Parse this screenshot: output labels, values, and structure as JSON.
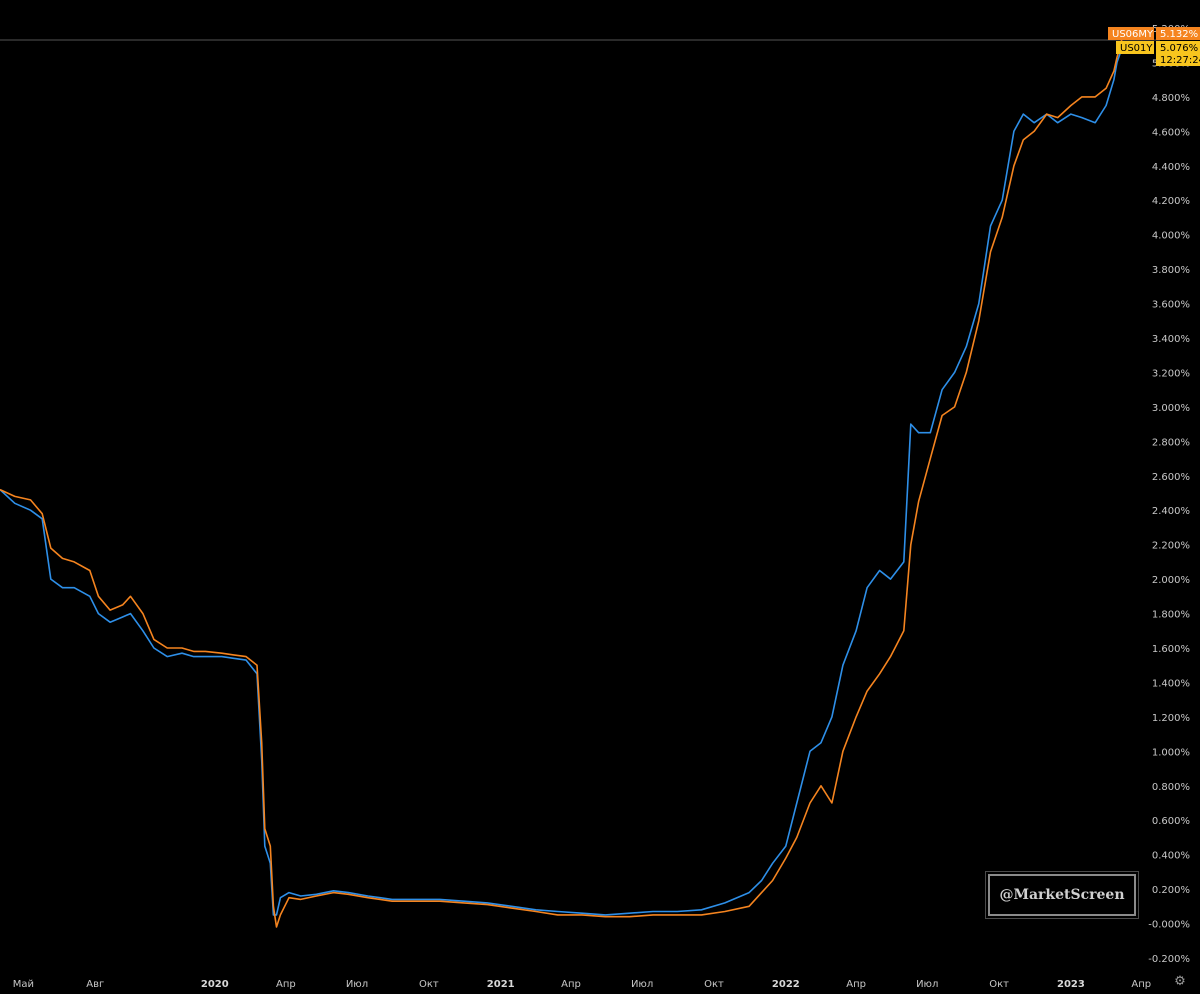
{
  "chart_data": {
    "type": "line",
    "title": "",
    "xlabel": "",
    "ylabel": "",
    "ylim": [
      -0.2,
      5.2
    ],
    "y_ticks": [
      "5.200%",
      "5.000%",
      "4.800%",
      "4.600%",
      "4.400%",
      "4.200%",
      "4.000%",
      "3.800%",
      "3.600%",
      "3.400%",
      "3.200%",
      "3.000%",
      "2.800%",
      "2.600%",
      "2.400%",
      "2.200%",
      "2.000%",
      "1.800%",
      "1.600%",
      "1.400%",
      "1.200%",
      "1.000%",
      "0.800%",
      "0.600%",
      "0.400%",
      "0.200%",
      "-0.000%",
      "-0.200%"
    ],
    "y_tick_values": [
      5.2,
      5.0,
      4.8,
      4.6,
      4.4,
      4.2,
      4.0,
      3.8,
      3.6,
      3.4,
      3.2,
      3.0,
      2.8,
      2.6,
      2.4,
      2.2,
      2.0,
      1.8,
      1.6,
      1.4,
      1.2,
      1.0,
      0.8,
      0.6,
      0.4,
      0.2,
      0.0,
      -0.2
    ],
    "x_range": [
      "2019-04-01",
      "2023-04-25"
    ],
    "x_ticks": [
      {
        "label": "Май",
        "date": "2019-05-01",
        "year": false
      },
      {
        "label": "Авг",
        "date": "2019-08-01",
        "year": false
      },
      {
        "label": "2020",
        "date": "2020-01-01",
        "year": true
      },
      {
        "label": "Апр",
        "date": "2020-04-01",
        "year": false
      },
      {
        "label": "Июл",
        "date": "2020-07-01",
        "year": false
      },
      {
        "label": "Окт",
        "date": "2020-10-01",
        "year": false
      },
      {
        "label": "2021",
        "date": "2021-01-01",
        "year": true
      },
      {
        "label": "Апр",
        "date": "2021-04-01",
        "year": false
      },
      {
        "label": "Июл",
        "date": "2021-07-01",
        "year": false
      },
      {
        "label": "Окт",
        "date": "2021-10-01",
        "year": false
      },
      {
        "label": "2022",
        "date": "2022-01-01",
        "year": true
      },
      {
        "label": "Апр",
        "date": "2022-04-01",
        "year": false
      },
      {
        "label": "Июл",
        "date": "2022-07-01",
        "year": false
      },
      {
        "label": "Окт",
        "date": "2022-10-01",
        "year": false
      },
      {
        "label": "2023",
        "date": "2023-01-01",
        "year": true
      },
      {
        "label": "Апр",
        "date": "2023-04-01",
        "year": false
      }
    ],
    "series": [
      {
        "name": "US06MY",
        "color": "#f5841f",
        "last_value": "5.132%",
        "points": [
          [
            "2019-04-01",
            2.52
          ],
          [
            "2019-04-20",
            2.48
          ],
          [
            "2019-05-10",
            2.46
          ],
          [
            "2019-05-25",
            2.38
          ],
          [
            "2019-06-05",
            2.18
          ],
          [
            "2019-06-20",
            2.12
          ],
          [
            "2019-07-05",
            2.1
          ],
          [
            "2019-07-25",
            2.05
          ],
          [
            "2019-08-05",
            1.9
          ],
          [
            "2019-08-20",
            1.82
          ],
          [
            "2019-09-05",
            1.85
          ],
          [
            "2019-09-15",
            1.9
          ],
          [
            "2019-10-01",
            1.8
          ],
          [
            "2019-10-15",
            1.65
          ],
          [
            "2019-11-01",
            1.6
          ],
          [
            "2019-11-20",
            1.6
          ],
          [
            "2019-12-05",
            1.58
          ],
          [
            "2019-12-20",
            1.58
          ],
          [
            "2020-01-10",
            1.57
          ],
          [
            "2020-01-25",
            1.56
          ],
          [
            "2020-02-10",
            1.55
          ],
          [
            "2020-02-24",
            1.5
          ],
          [
            "2020-03-01",
            1.05
          ],
          [
            "2020-03-05",
            0.55
          ],
          [
            "2020-03-12",
            0.45
          ],
          [
            "2020-03-16",
            0.1
          ],
          [
            "2020-03-20",
            -0.02
          ],
          [
            "2020-03-25",
            0.05
          ],
          [
            "2020-04-05",
            0.15
          ],
          [
            "2020-04-20",
            0.14
          ],
          [
            "2020-05-10",
            0.16
          ],
          [
            "2020-06-01",
            0.18
          ],
          [
            "2020-06-20",
            0.17
          ],
          [
            "2020-07-15",
            0.15
          ],
          [
            "2020-08-15",
            0.13
          ],
          [
            "2020-09-15",
            0.13
          ],
          [
            "2020-10-15",
            0.13
          ],
          [
            "2020-11-15",
            0.12
          ],
          [
            "2020-12-15",
            0.11
          ],
          [
            "2021-01-15",
            0.09
          ],
          [
            "2021-02-15",
            0.07
          ],
          [
            "2021-03-15",
            0.05
          ],
          [
            "2021-04-15",
            0.05
          ],
          [
            "2021-05-15",
            0.04
          ],
          [
            "2021-06-15",
            0.04
          ],
          [
            "2021-07-15",
            0.05
          ],
          [
            "2021-08-15",
            0.05
          ],
          [
            "2021-09-15",
            0.05
          ],
          [
            "2021-10-15",
            0.07
          ],
          [
            "2021-11-15",
            0.1
          ],
          [
            "2021-12-01",
            0.18
          ],
          [
            "2021-12-15",
            0.25
          ],
          [
            "2022-01-01",
            0.38
          ],
          [
            "2022-01-15",
            0.5
          ],
          [
            "2022-02-01",
            0.7
          ],
          [
            "2022-02-15",
            0.8
          ],
          [
            "2022-03-01",
            0.7
          ],
          [
            "2022-03-15",
            1.0
          ],
          [
            "2022-04-01",
            1.2
          ],
          [
            "2022-04-15",
            1.35
          ],
          [
            "2022-05-01",
            1.45
          ],
          [
            "2022-05-15",
            1.55
          ],
          [
            "2022-06-01",
            1.7
          ],
          [
            "2022-06-10",
            2.2
          ],
          [
            "2022-06-20",
            2.45
          ],
          [
            "2022-07-05",
            2.7
          ],
          [
            "2022-07-20",
            2.95
          ],
          [
            "2022-08-05",
            3.0
          ],
          [
            "2022-08-20",
            3.2
          ],
          [
            "2022-09-05",
            3.5
          ],
          [
            "2022-09-20",
            3.9
          ],
          [
            "2022-10-05",
            4.1
          ],
          [
            "2022-10-20",
            4.4
          ],
          [
            "2022-11-01",
            4.55
          ],
          [
            "2022-11-15",
            4.6
          ],
          [
            "2022-12-01",
            4.7
          ],
          [
            "2022-12-15",
            4.68
          ],
          [
            "2023-01-01",
            4.75
          ],
          [
            "2023-01-15",
            4.8
          ],
          [
            "2023-02-01",
            4.8
          ],
          [
            "2023-02-15",
            4.85
          ],
          [
            "2023-02-25",
            4.95
          ],
          [
            "2023-03-01",
            5.03
          ],
          [
            "2023-03-07",
            5.13
          ]
        ]
      },
      {
        "name": "US01Y",
        "color": "#2e8fe8",
        "last_value": "5.076%",
        "time_label": "12:27:24",
        "points": [
          [
            "2019-04-01",
            2.52
          ],
          [
            "2019-04-20",
            2.44
          ],
          [
            "2019-05-10",
            2.4
          ],
          [
            "2019-05-25",
            2.35
          ],
          [
            "2019-06-05",
            2.0
          ],
          [
            "2019-06-20",
            1.95
          ],
          [
            "2019-07-05",
            1.95
          ],
          [
            "2019-07-25",
            1.9
          ],
          [
            "2019-08-05",
            1.8
          ],
          [
            "2019-08-20",
            1.75
          ],
          [
            "2019-09-05",
            1.78
          ],
          [
            "2019-09-15",
            1.8
          ],
          [
            "2019-10-01",
            1.7
          ],
          [
            "2019-10-15",
            1.6
          ],
          [
            "2019-11-01",
            1.55
          ],
          [
            "2019-11-20",
            1.57
          ],
          [
            "2019-12-05",
            1.55
          ],
          [
            "2019-12-20",
            1.55
          ],
          [
            "2020-01-10",
            1.55
          ],
          [
            "2020-01-25",
            1.54
          ],
          [
            "2020-02-10",
            1.53
          ],
          [
            "2020-02-24",
            1.45
          ],
          [
            "2020-03-01",
            0.95
          ],
          [
            "2020-03-05",
            0.45
          ],
          [
            "2020-03-12",
            0.35
          ],
          [
            "2020-03-16",
            0.05
          ],
          [
            "2020-03-20",
            0.05
          ],
          [
            "2020-03-25",
            0.15
          ],
          [
            "2020-04-05",
            0.18
          ],
          [
            "2020-04-20",
            0.16
          ],
          [
            "2020-05-10",
            0.17
          ],
          [
            "2020-06-01",
            0.19
          ],
          [
            "2020-06-20",
            0.18
          ],
          [
            "2020-07-15",
            0.16
          ],
          [
            "2020-08-15",
            0.14
          ],
          [
            "2020-09-15",
            0.14
          ],
          [
            "2020-10-15",
            0.14
          ],
          [
            "2020-11-15",
            0.13
          ],
          [
            "2020-12-15",
            0.12
          ],
          [
            "2021-01-15",
            0.1
          ],
          [
            "2021-02-15",
            0.08
          ],
          [
            "2021-03-15",
            0.07
          ],
          [
            "2021-04-15",
            0.06
          ],
          [
            "2021-05-15",
            0.05
          ],
          [
            "2021-06-15",
            0.06
          ],
          [
            "2021-07-15",
            0.07
          ],
          [
            "2021-08-15",
            0.07
          ],
          [
            "2021-09-15",
            0.08
          ],
          [
            "2021-10-15",
            0.12
          ],
          [
            "2021-11-15",
            0.18
          ],
          [
            "2021-12-01",
            0.25
          ],
          [
            "2021-12-15",
            0.35
          ],
          [
            "2022-01-01",
            0.45
          ],
          [
            "2022-01-15",
            0.7
          ],
          [
            "2022-02-01",
            1.0
          ],
          [
            "2022-02-15",
            1.05
          ],
          [
            "2022-03-01",
            1.2
          ],
          [
            "2022-03-15",
            1.5
          ],
          [
            "2022-04-01",
            1.7
          ],
          [
            "2022-04-15",
            1.95
          ],
          [
            "2022-05-01",
            2.05
          ],
          [
            "2022-05-15",
            2.0
          ],
          [
            "2022-06-01",
            2.1
          ],
          [
            "2022-06-10",
            2.9
          ],
          [
            "2022-06-20",
            2.85
          ],
          [
            "2022-07-05",
            2.85
          ],
          [
            "2022-07-20",
            3.1
          ],
          [
            "2022-08-05",
            3.2
          ],
          [
            "2022-08-20",
            3.35
          ],
          [
            "2022-09-05",
            3.6
          ],
          [
            "2022-09-20",
            4.05
          ],
          [
            "2022-10-05",
            4.2
          ],
          [
            "2022-10-20",
            4.6
          ],
          [
            "2022-11-01",
            4.7
          ],
          [
            "2022-11-15",
            4.65
          ],
          [
            "2022-12-01",
            4.7
          ],
          [
            "2022-12-15",
            4.65
          ],
          [
            "2023-01-01",
            4.7
          ],
          [
            "2023-01-15",
            4.68
          ],
          [
            "2023-02-01",
            4.65
          ],
          [
            "2023-02-15",
            4.75
          ],
          [
            "2023-02-25",
            4.9
          ],
          [
            "2023-03-01",
            5.0
          ],
          [
            "2023-03-07",
            5.08
          ]
        ]
      }
    ],
    "grid": false,
    "legend_placement": "right-axis badges"
  },
  "badges": {
    "us06my_label": "US06MY",
    "us06my_value": "5.132%",
    "us01y_label": "US01Y",
    "us01y_value": "5.076%",
    "us01y_time": "12:27:24",
    "us06my_color": "#f5841f",
    "us01y_color": "#f7c51e"
  },
  "watermark": "@MarketScreen",
  "settings_icon": "gear-icon",
  "settings_glyph": "⚙"
}
